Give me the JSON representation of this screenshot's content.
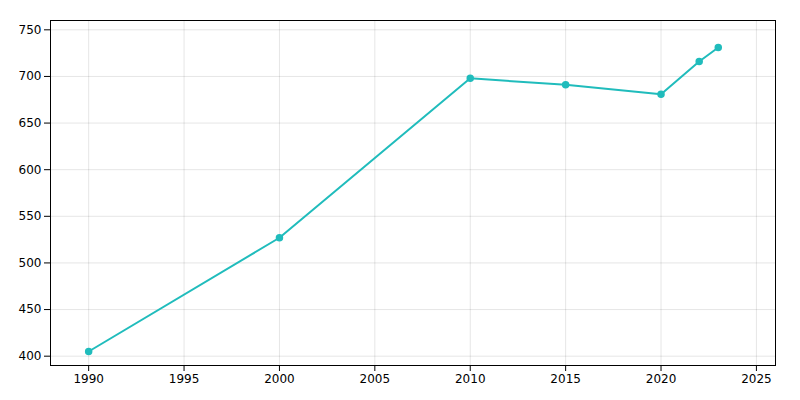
{
  "chart_data": {
    "type": "line",
    "x": [
      1990,
      2000,
      2010,
      2015,
      2020,
      2022,
      2023
    ],
    "values": [
      405,
      527,
      698,
      691,
      681,
      716,
      731
    ],
    "color": "#20BCBC",
    "marker": "circle",
    "xlim": [
      1988,
      2026
    ],
    "ylim": [
      390,
      760
    ],
    "xticks": [
      1990,
      1995,
      2000,
      2005,
      2010,
      2015,
      2020,
      2025
    ],
    "yticks": [
      400,
      450,
      500,
      550,
      600,
      650,
      700,
      750
    ],
    "grid": true
  }
}
